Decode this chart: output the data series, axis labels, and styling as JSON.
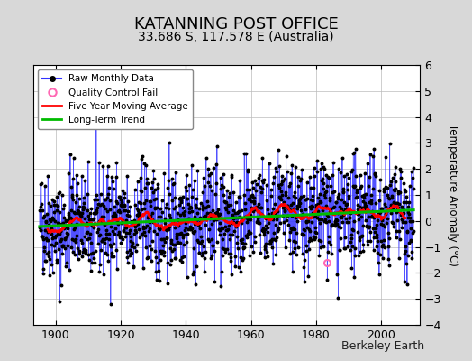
{
  "title": "KATANNING POST OFFICE",
  "subtitle": "33.686 S, 117.578 E (Australia)",
  "ylabel": "Temperature Anomaly (°C)",
  "credit": "Berkeley Earth",
  "xlim": [
    1893,
    2012
  ],
  "ylim": [
    -4,
    6
  ],
  "yticks": [
    -4,
    -3,
    -2,
    -1,
    0,
    1,
    2,
    3,
    4,
    5,
    6
  ],
  "xticks": [
    1900,
    1920,
    1940,
    1960,
    1980,
    2000
  ],
  "seed": 42,
  "n_months": 1380,
  "start_year": 1895.0,
  "raw_color": "#3333ff",
  "dot_color": "#000000",
  "moving_avg_color": "#ff0000",
  "trend_color": "#00bb00",
  "qc_fail_color": "#ff69b4",
  "background_color": "#d8d8d8",
  "plot_bg_color": "#ffffff",
  "title_fontsize": 13,
  "subtitle_fontsize": 10,
  "label_fontsize": 8.5,
  "tick_fontsize": 9,
  "credit_fontsize": 9
}
